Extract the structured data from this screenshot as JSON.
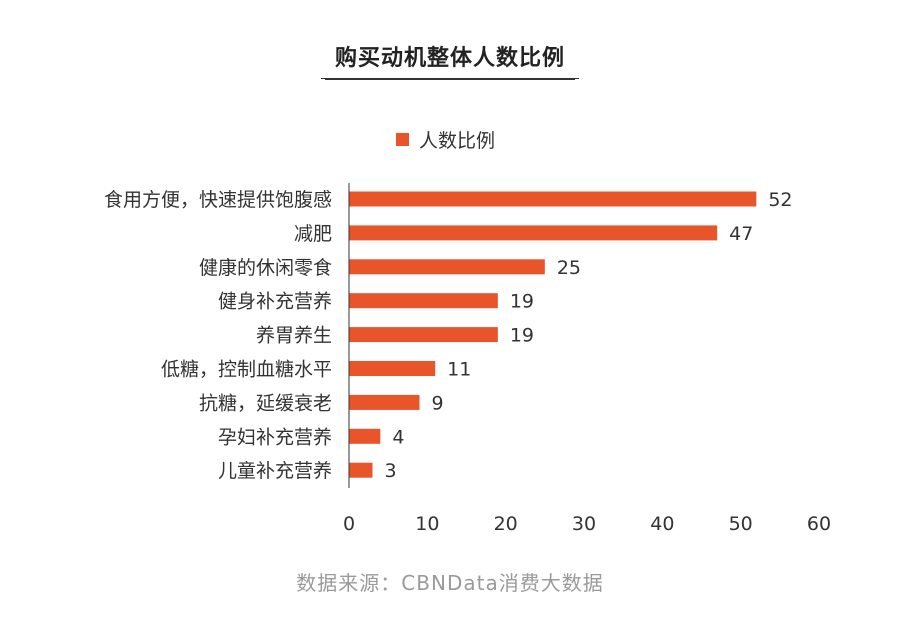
{
  "colors": {
    "bar": "#E8552A",
    "axis": "#333333",
    "text": "#333333",
    "source": "#9a9a9a"
  },
  "chart_data": {
    "type": "bar",
    "orientation": "horizontal",
    "title": "购买动机整体人数比例",
    "categories": [
      "食用方便，快速提供饱腹感",
      "减肥",
      "健康的休闲零食",
      "健身补充营养",
      "养胃养生",
      "低糖，控制血糖水平",
      "抗糖，延缓衰老",
      "孕妇补充营养",
      "儿童补充营养"
    ],
    "series": [
      {
        "name": "人数比例",
        "values": [
          52,
          47,
          25,
          19,
          19,
          11,
          9,
          4,
          3
        ]
      }
    ],
    "xlim": [
      0,
      60
    ],
    "xticks": [
      "0",
      "10",
      "20",
      "30",
      "40",
      "50",
      "60"
    ],
    "legend_position": "top-center",
    "grid": false
  },
  "source": "数据来源：CBNData消费大数据"
}
